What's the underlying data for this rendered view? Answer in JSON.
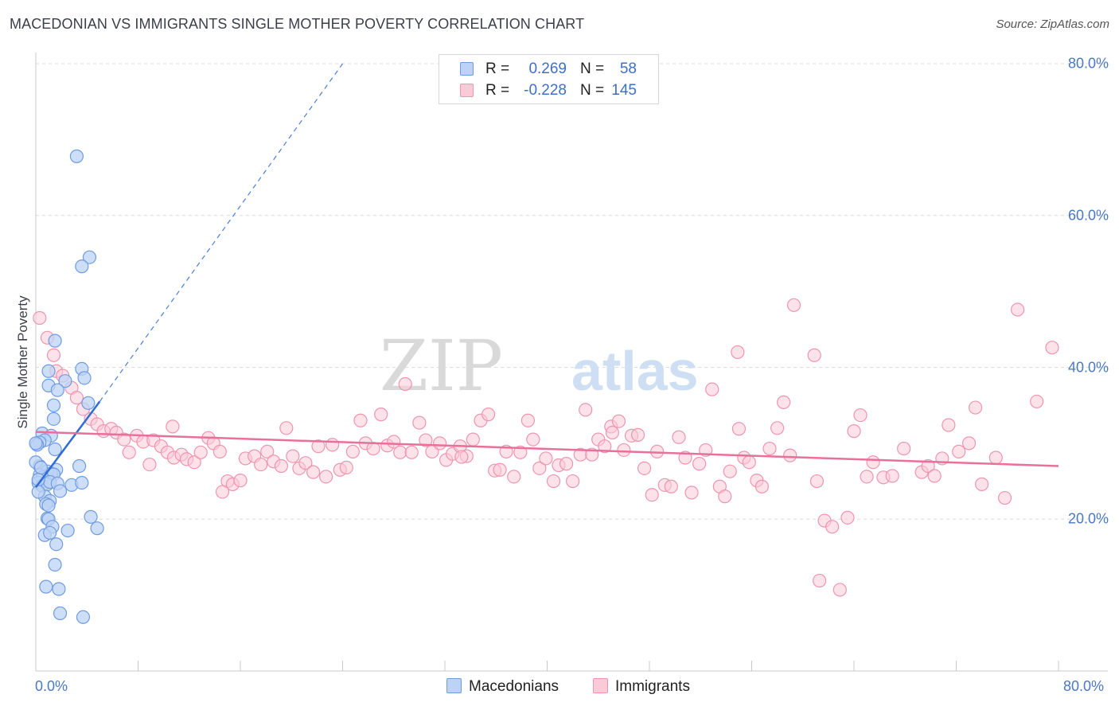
{
  "title": "MACEDONIAN VS IMMIGRANTS SINGLE MOTHER POVERTY CORRELATION CHART",
  "source": "Source: ZipAtlas.com",
  "watermark": {
    "zip": "ZIP",
    "atlas": "atlas"
  },
  "legend": {
    "r_label": "R =",
    "n_label": "N =",
    "rows": [
      {
        "name": "Macedonians",
        "r": "0.269",
        "n": "58",
        "fill": "#bcd3f5",
        "stroke": "#6f9be0"
      },
      {
        "name": "Immigrants",
        "r": "-0.228",
        "n": "145",
        "fill": "#fbcad8",
        "stroke": "#ee95b0"
      }
    ]
  },
  "chart_data": {
    "type": "scatter",
    "title": "MACEDONIAN VS IMMIGRANTS SINGLE MOTHER POVERTY CORRELATION CHART",
    "xlabel": "",
    "ylabel": "Single Mother Poverty",
    "xlim": [
      0,
      80
    ],
    "ylim": [
      0,
      80
    ],
    "y_ticks": [
      "20.0%",
      "40.0%",
      "60.0%",
      "80.0%"
    ],
    "y_tick_values": [
      20,
      40,
      60,
      80
    ],
    "x_tick_labels": [
      "0.0%",
      "80.0%"
    ],
    "x_tick_label_values": [
      0,
      80
    ],
    "grid": true,
    "series": [
      {
        "name": "Macedonians",
        "color": "#7aa7e8",
        "trend": {
          "x0": 0.0,
          "y0": 24.2,
          "x1": 5.0,
          "y1": 35.5,
          "dashed_to_x": 24,
          "dashed_to_y": 80
        },
        "points": [
          [
            3.2,
            67.8
          ],
          [
            4.2,
            54.5
          ],
          [
            3.6,
            53.3
          ],
          [
            1.5,
            43.5
          ],
          [
            1.0,
            39.5
          ],
          [
            3.6,
            39.8
          ],
          [
            3.8,
            38.6
          ],
          [
            2.3,
            38.2
          ],
          [
            1.0,
            37.6
          ],
          [
            1.7,
            37.0
          ],
          [
            4.1,
            35.3
          ],
          [
            1.4,
            35.0
          ],
          [
            1.4,
            33.2
          ],
          [
            0.5,
            31.3
          ],
          [
            1.2,
            31.0
          ],
          [
            0.7,
            30.4
          ],
          [
            0.3,
            30.1
          ],
          [
            0.1,
            29.8
          ],
          [
            1.5,
            29.2
          ],
          [
            0.3,
            27.0
          ],
          [
            1.6,
            26.5
          ],
          [
            0.9,
            26.3
          ],
          [
            1.2,
            26.0
          ],
          [
            0.3,
            25.8
          ],
          [
            1.4,
            25.9
          ],
          [
            0.5,
            25.5
          ],
          [
            3.4,
            27.0
          ],
          [
            0.2,
            24.8
          ],
          [
            0.5,
            24.4
          ],
          [
            0.9,
            24.6
          ],
          [
            1.1,
            24.9
          ],
          [
            1.7,
            24.7
          ],
          [
            2.8,
            24.5
          ],
          [
            3.6,
            24.8
          ],
          [
            0.7,
            23.0
          ],
          [
            1.1,
            22.4
          ],
          [
            0.8,
            22.0
          ],
          [
            1.0,
            21.8
          ],
          [
            0.9,
            20.1
          ],
          [
            1.0,
            20.0
          ],
          [
            4.3,
            20.3
          ],
          [
            1.3,
            19.0
          ],
          [
            4.8,
            18.8
          ],
          [
            2.5,
            18.5
          ],
          [
            0.7,
            17.9
          ],
          [
            1.1,
            18.2
          ],
          [
            1.6,
            16.7
          ],
          [
            1.5,
            14.0
          ],
          [
            0.8,
            11.1
          ],
          [
            1.8,
            10.8
          ],
          [
            1.9,
            7.6
          ],
          [
            3.7,
            7.1
          ],
          [
            0.0,
            27.5
          ],
          [
            0.2,
            25.2
          ],
          [
            0.0,
            30.0
          ],
          [
            0.4,
            26.8
          ],
          [
            0.2,
            23.6
          ],
          [
            1.9,
            23.7
          ]
        ]
      },
      {
        "name": "Immigrants",
        "color": "#f19ab6",
        "trend": {
          "x0": 0.0,
          "y0": 31.5,
          "x1": 80.0,
          "y1": 27.0
        },
        "points": [
          [
            0.3,
            46.5
          ],
          [
            0.9,
            43.9
          ],
          [
            1.4,
            41.6
          ],
          [
            1.6,
            39.5
          ],
          [
            2.1,
            38.9
          ],
          [
            2.8,
            37.3
          ],
          [
            3.2,
            36.0
          ],
          [
            3.7,
            34.5
          ],
          [
            4.3,
            33.2
          ],
          [
            4.8,
            32.5
          ],
          [
            5.3,
            31.6
          ],
          [
            5.9,
            31.9
          ],
          [
            6.3,
            31.4
          ],
          [
            6.9,
            30.5
          ],
          [
            7.3,
            28.8
          ],
          [
            7.9,
            31.0
          ],
          [
            8.4,
            30.2
          ],
          [
            8.9,
            27.2
          ],
          [
            9.2,
            30.4
          ],
          [
            9.8,
            29.6
          ],
          [
            10.3,
            28.8
          ],
          [
            10.8,
            28.1
          ],
          [
            11.4,
            28.5
          ],
          [
            11.8,
            27.9
          ],
          [
            12.4,
            27.5
          ],
          [
            12.9,
            28.8
          ],
          [
            13.5,
            30.7
          ],
          [
            13.9,
            30.0
          ],
          [
            14.4,
            28.9
          ],
          [
            15.0,
            25.0
          ],
          [
            15.4,
            24.6
          ],
          [
            16.0,
            25.1
          ],
          [
            16.4,
            28.0
          ],
          [
            17.1,
            28.3
          ],
          [
            17.6,
            27.2
          ],
          [
            18.1,
            28.9
          ],
          [
            18.6,
            27.6
          ],
          [
            19.2,
            27.0
          ],
          [
            19.6,
            32.0
          ],
          [
            20.1,
            28.3
          ],
          [
            20.6,
            26.7
          ],
          [
            21.1,
            27.4
          ],
          [
            21.7,
            26.2
          ],
          [
            22.1,
            29.6
          ],
          [
            22.7,
            25.6
          ],
          [
            23.2,
            29.8
          ],
          [
            23.8,
            26.5
          ],
          [
            24.3,
            26.8
          ],
          [
            24.8,
            28.9
          ],
          [
            25.4,
            33.0
          ],
          [
            25.8,
            30.0
          ],
          [
            26.4,
            29.3
          ],
          [
            27.0,
            33.8
          ],
          [
            27.5,
            29.7
          ],
          [
            28.0,
            30.2
          ],
          [
            28.5,
            28.8
          ],
          [
            28.9,
            37.8
          ],
          [
            29.4,
            28.8
          ],
          [
            30.0,
            32.7
          ],
          [
            30.5,
            30.4
          ],
          [
            31.0,
            28.9
          ],
          [
            31.6,
            30.0
          ],
          [
            32.1,
            27.8
          ],
          [
            32.6,
            28.6
          ],
          [
            33.2,
            29.6
          ],
          [
            33.7,
            28.3
          ],
          [
            34.2,
            30.5
          ],
          [
            34.8,
            33.0
          ],
          [
            35.4,
            33.8
          ],
          [
            35.9,
            26.4
          ],
          [
            36.3,
            26.5
          ],
          [
            36.8,
            28.9
          ],
          [
            37.4,
            25.6
          ],
          [
            37.9,
            28.8
          ],
          [
            38.5,
            33.0
          ],
          [
            38.9,
            30.5
          ],
          [
            39.4,
            26.7
          ],
          [
            39.9,
            28.0
          ],
          [
            40.5,
            25.0
          ],
          [
            40.9,
            27.1
          ],
          [
            41.5,
            27.3
          ],
          [
            42.0,
            25.0
          ],
          [
            42.6,
            28.5
          ],
          [
            43.0,
            34.4
          ],
          [
            43.5,
            28.5
          ],
          [
            44.0,
            30.5
          ],
          [
            44.5,
            29.6
          ],
          [
            45.0,
            32.2
          ],
          [
            45.6,
            32.9
          ],
          [
            46.0,
            29.1
          ],
          [
            46.6,
            31.0
          ],
          [
            47.1,
            31.1
          ],
          [
            47.6,
            26.7
          ],
          [
            48.2,
            23.2
          ],
          [
            48.6,
            28.9
          ],
          [
            49.2,
            24.5
          ],
          [
            49.7,
            24.3
          ],
          [
            50.3,
            30.8
          ],
          [
            50.8,
            28.1
          ],
          [
            51.3,
            23.5
          ],
          [
            51.9,
            27.3
          ],
          [
            52.4,
            29.1
          ],
          [
            52.9,
            37.1
          ],
          [
            53.5,
            24.3
          ],
          [
            53.9,
            23.0
          ],
          [
            54.3,
            26.3
          ],
          [
            54.9,
            42.0
          ],
          [
            55.4,
            28.1
          ],
          [
            55.8,
            27.5
          ],
          [
            56.4,
            25.1
          ],
          [
            56.8,
            24.3
          ],
          [
            57.4,
            29.3
          ],
          [
            58.0,
            32.0
          ],
          [
            58.5,
            35.4
          ],
          [
            59.0,
            28.4
          ],
          [
            59.3,
            48.2
          ],
          [
            60.9,
            41.6
          ],
          [
            61.1,
            25.0
          ],
          [
            61.7,
            19.8
          ],
          [
            62.3,
            19.0
          ],
          [
            61.3,
            11.9
          ],
          [
            62.9,
            10.7
          ],
          [
            63.5,
            20.2
          ],
          [
            64.0,
            31.6
          ],
          [
            64.5,
            33.7
          ],
          [
            65.0,
            25.6
          ],
          [
            65.5,
            27.5
          ],
          [
            66.3,
            25.5
          ],
          [
            67.0,
            25.7
          ],
          [
            67.9,
            29.3
          ],
          [
            69.3,
            26.2
          ],
          [
            69.8,
            27.0
          ],
          [
            70.3,
            25.7
          ],
          [
            70.9,
            28.0
          ],
          [
            71.4,
            32.4
          ],
          [
            72.2,
            28.9
          ],
          [
            73.0,
            30.0
          ],
          [
            73.5,
            34.7
          ],
          [
            74.0,
            24.6
          ],
          [
            75.1,
            28.1
          ],
          [
            75.8,
            22.8
          ],
          [
            76.8,
            47.6
          ],
          [
            78.3,
            35.5
          ],
          [
            79.5,
            42.6
          ],
          [
            55.0,
            31.9
          ],
          [
            45.1,
            31.4
          ],
          [
            33.3,
            28.2
          ],
          [
            14.6,
            23.6
          ],
          [
            10.7,
            32.2
          ]
        ]
      }
    ]
  }
}
